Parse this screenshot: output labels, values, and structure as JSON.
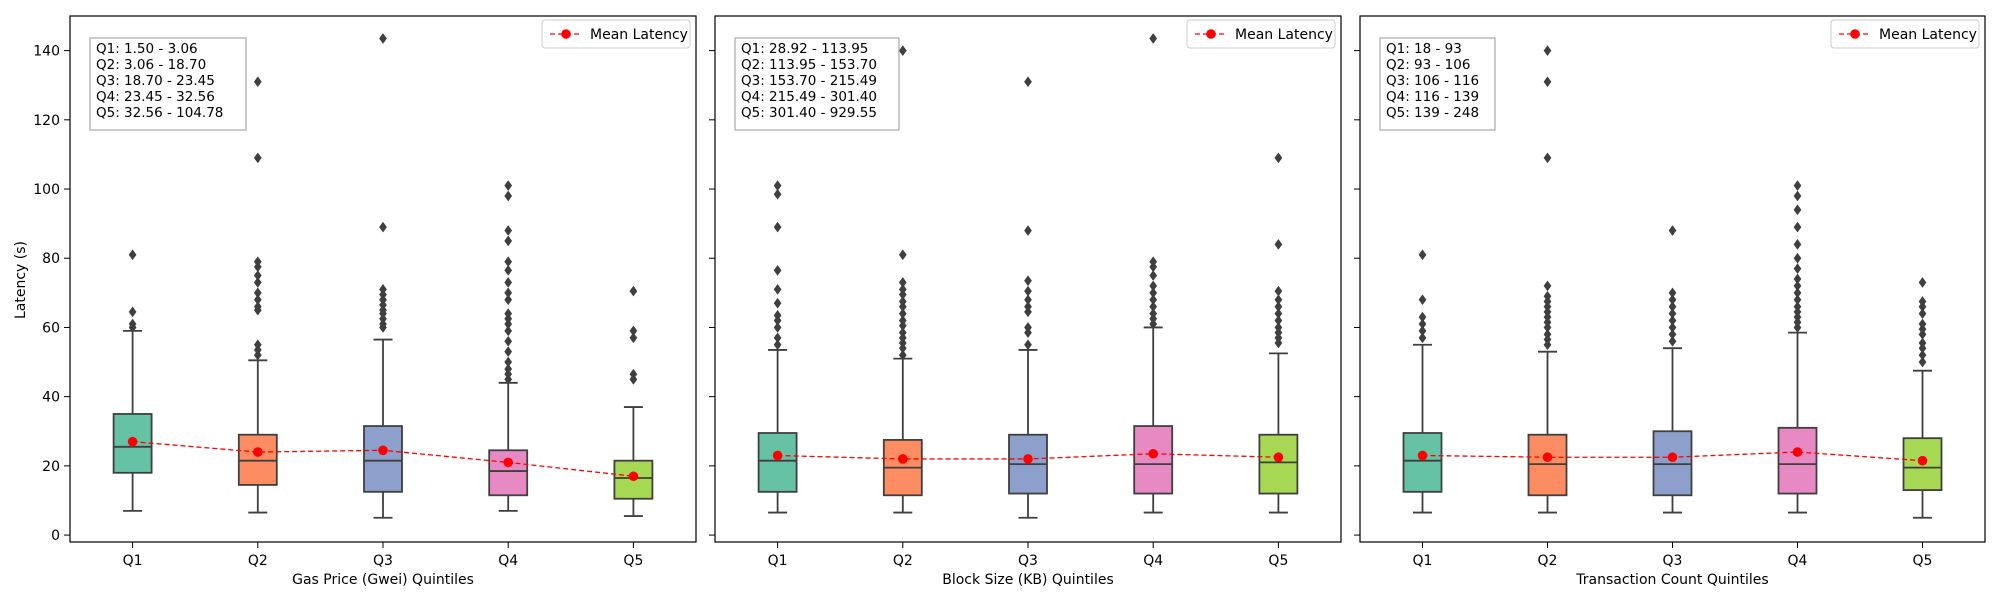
{
  "figure": {
    "ylabel": "Latency (s)"
  },
  "chart_data": [
    {
      "type": "box",
      "xlabel": "Gas Price (Gwei) Quintiles",
      "ylabel": "Latency (s)",
      "ylim": [
        -2,
        150
      ],
      "yticks": [
        0,
        20,
        40,
        60,
        80,
        100,
        120,
        140
      ],
      "categories": [
        "Q1",
        "Q2",
        "Q3",
        "Q4",
        "Q5"
      ],
      "legend": {
        "label": "Mean Latency",
        "position": "top-right"
      },
      "range_box": [
        "Q1: 1.50 - 3.06",
        "Q2: 3.06 - 18.70",
        "Q3: 18.70 - 23.45",
        "Q4: 23.45 - 32.56",
        "Q5: 32.56 - 104.78"
      ],
      "boxes": [
        {
          "q1": 18,
          "median": 25.5,
          "q3": 35,
          "whislo": 7,
          "whishi": 59,
          "fliers": [
            60,
            61,
            64.5,
            81
          ]
        },
        {
          "q1": 14.5,
          "median": 21.5,
          "q3": 29,
          "whislo": 6.5,
          "whishi": 50.5,
          "fliers": [
            52,
            53.5,
            55,
            65,
            66,
            68,
            70,
            73,
            75,
            77.5,
            79,
            109,
            131
          ]
        },
        {
          "q1": 12.5,
          "median": 21.5,
          "q3": 31.5,
          "whislo": 5,
          "whishi": 56.5,
          "fliers": [
            60,
            61,
            62.5,
            64,
            65,
            66.5,
            68,
            69.5,
            71,
            89,
            143.5
          ]
        },
        {
          "q1": 11.5,
          "median": 18.5,
          "q3": 24.5,
          "whislo": 7,
          "whishi": 44,
          "fliers": [
            45,
            46.5,
            48,
            50,
            53,
            56,
            59,
            61,
            62.5,
            64,
            68,
            70,
            73,
            76.5,
            79,
            85,
            88,
            98,
            101
          ]
        },
        {
          "q1": 10.5,
          "median": 16.5,
          "q3": 21.5,
          "whislo": 5.5,
          "whishi": 37,
          "fliers": [
            45,
            46.5,
            57,
            59,
            70.5
          ]
        }
      ],
      "means": [
        27,
        24,
        24.5,
        21,
        17
      ]
    },
    {
      "type": "box",
      "xlabel": "Block Size (KB) Quintiles",
      "ylim": [
        -2,
        150
      ],
      "yticks": [
        0,
        20,
        40,
        60,
        80,
        100,
        120,
        140
      ],
      "categories": [
        "Q1",
        "Q2",
        "Q3",
        "Q4",
        "Q5"
      ],
      "legend": {
        "label": "Mean Latency",
        "position": "top-right"
      },
      "range_box": [
        "Q1: 28.92 - 113.95",
        "Q2: 113.95 - 153.70",
        "Q3: 153.70 - 215.49",
        "Q4: 215.49 - 301.40",
        "Q5: 301.40 - 929.55"
      ],
      "boxes": [
        {
          "q1": 12.5,
          "median": 21.5,
          "q3": 29.5,
          "whislo": 6.5,
          "whishi": 53.5,
          "fliers": [
            55,
            57,
            60,
            62,
            63.5,
            67,
            71,
            76.5,
            89,
            98.5,
            101
          ]
        },
        {
          "q1": 11.5,
          "median": 19.5,
          "q3": 27.5,
          "whislo": 6.5,
          "whishi": 51,
          "fliers": [
            52,
            54,
            55.5,
            57,
            58.5,
            60.5,
            62,
            64,
            66,
            67.5,
            69.5,
            71,
            73,
            81,
            140
          ]
        },
        {
          "q1": 12,
          "median": 20.5,
          "q3": 29,
          "whislo": 5,
          "whishi": 53.5,
          "fliers": [
            55,
            58.5,
            60,
            64.5,
            66,
            68,
            70.5,
            73.5,
            88,
            131
          ]
        },
        {
          "q1": 12,
          "median": 20.5,
          "q3": 31.5,
          "whislo": 6.5,
          "whishi": 60,
          "fliers": [
            61,
            62.5,
            64,
            66,
            68,
            70,
            72,
            75,
            77.5,
            79,
            143.5
          ]
        },
        {
          "q1": 12,
          "median": 21,
          "q3": 29,
          "whislo": 6.5,
          "whishi": 52.5,
          "fliers": [
            55.5,
            57,
            58.5,
            60,
            62,
            64,
            66,
            68,
            70.5,
            84,
            109
          ]
        }
      ],
      "means": [
        23,
        22,
        22,
        23.5,
        22.5
      ]
    },
    {
      "type": "box",
      "xlabel": "Transaction Count Quintiles",
      "ylim": [
        -2,
        150
      ],
      "yticks": [
        0,
        20,
        40,
        60,
        80,
        100,
        120,
        140
      ],
      "categories": [
        "Q1",
        "Q2",
        "Q3",
        "Q4",
        "Q5"
      ],
      "legend": {
        "label": "Mean Latency",
        "position": "top-right"
      },
      "range_box": [
        "Q1: 18 - 93",
        "Q2: 93 - 106",
        "Q3: 106 - 116",
        "Q4: 116 - 139",
        "Q5: 139 - 248"
      ],
      "boxes": [
        {
          "q1": 12.5,
          "median": 21.5,
          "q3": 29.5,
          "whislo": 6.5,
          "whishi": 55,
          "fliers": [
            57,
            59,
            61,
            63,
            68,
            81
          ]
        },
        {
          "q1": 11.5,
          "median": 20.5,
          "q3": 29,
          "whislo": 6.5,
          "whishi": 53,
          "fliers": [
            55,
            56.5,
            58,
            60,
            61.5,
            63,
            64.5,
            66,
            67.5,
            69,
            72,
            109,
            131,
            140
          ]
        },
        {
          "q1": 11.5,
          "median": 20.5,
          "q3": 30,
          "whislo": 6.5,
          "whishi": 54,
          "fliers": [
            56,
            58,
            60,
            62,
            64,
            66,
            68,
            70,
            88
          ]
        },
        {
          "q1": 12,
          "median": 20.5,
          "q3": 31,
          "whislo": 6.5,
          "whishi": 58.5,
          "fliers": [
            60,
            61.5,
            63,
            64.5,
            66,
            68,
            70,
            72,
            74,
            77,
            80,
            84,
            89,
            94,
            98,
            101
          ]
        },
        {
          "q1": 13,
          "median": 19.5,
          "q3": 28,
          "whislo": 5,
          "whishi": 47.5,
          "fliers": [
            50,
            52,
            54,
            55.5,
            58,
            59.5,
            61,
            64,
            66,
            67.5,
            73
          ]
        }
      ],
      "means": [
        23,
        22.5,
        22.5,
        24,
        21.5
      ]
    }
  ],
  "colors": {
    "box_fills": [
      "#66c2a5",
      "#fc8d62",
      "#8da0cb",
      "#e78ac3",
      "#a6d854"
    ],
    "box_edge": "#3f3f3f",
    "mean_line": "#ff0000"
  }
}
